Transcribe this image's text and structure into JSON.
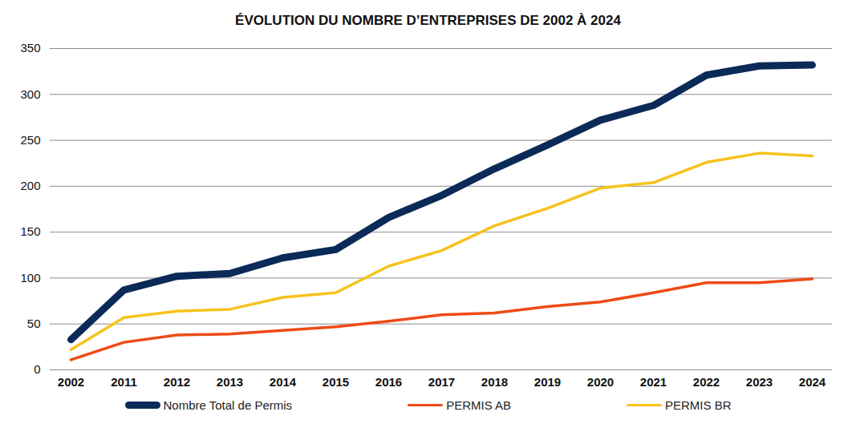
{
  "chart_data": {
    "type": "line",
    "title": "ÉVOLUTION DU NOMBRE D’ENTREPRISES DE 2002 À 2024",
    "categories": [
      "2002",
      "2011",
      "2012",
      "2013",
      "2014",
      "2015",
      "2016",
      "2017",
      "2018",
      "2019",
      "2020",
      "2021",
      "2022",
      "2023",
      "2024"
    ],
    "series": [
      {
        "name": "Nombre Total de Permis",
        "color": "#0b2a57",
        "values": [
          33,
          87,
          102,
          105,
          122,
          131,
          166,
          190,
          219,
          245,
          272,
          288,
          321,
          331,
          332
        ]
      },
      {
        "name": "PERMIS AB",
        "color": "#ee4a16",
        "values": [
          11,
          30,
          38,
          39,
          43,
          47,
          53,
          60,
          62,
          69,
          74,
          84,
          95,
          95,
          99
        ]
      },
      {
        "name": "PERMIS BR",
        "color": "#f7c21c",
        "values": [
          22,
          57,
          64,
          66,
          79,
          84,
          113,
          130,
          157,
          176,
          198,
          204,
          226,
          236,
          233
        ]
      }
    ],
    "ylim": [
      0,
      350
    ],
    "yticks": [
      0,
      50,
      100,
      150,
      200,
      250,
      300,
      350
    ],
    "grid": true,
    "legend": "bottom"
  }
}
